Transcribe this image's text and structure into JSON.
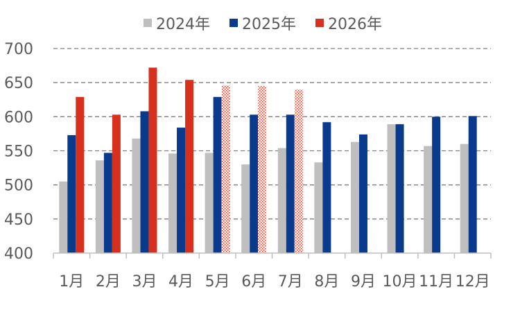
{
  "chart_data": {
    "type": "bar",
    "categories": [
      "1月",
      "2月",
      "3月",
      "4月",
      "5月",
      "6月",
      "7月",
      "8月",
      "9月",
      "10月",
      "11月",
      "12月"
    ],
    "series": [
      {
        "name": "2024年",
        "color": "#bfbfbf",
        "values": [
          505,
          536,
          568,
          546,
          547,
          530,
          554,
          533,
          563,
          589,
          557,
          560
        ]
      },
      {
        "name": "2025年",
        "color": "#0a3a8c",
        "values": [
          573,
          547,
          608,
          584,
          629,
          603,
          603,
          592,
          574,
          589,
          600,
          601
        ]
      },
      {
        "name": "2026年",
        "color": "#d7301f",
        "values": [
          629,
          603,
          672,
          654,
          646,
          645,
          640,
          null,
          null,
          null,
          null,
          null
        ],
        "estimated_from_index": 4
      }
    ],
    "ylim": [
      400,
      700
    ],
    "yticks": [
      400,
      450,
      500,
      550,
      600,
      650,
      700
    ],
    "grid": true,
    "legend_position": "top-center"
  }
}
